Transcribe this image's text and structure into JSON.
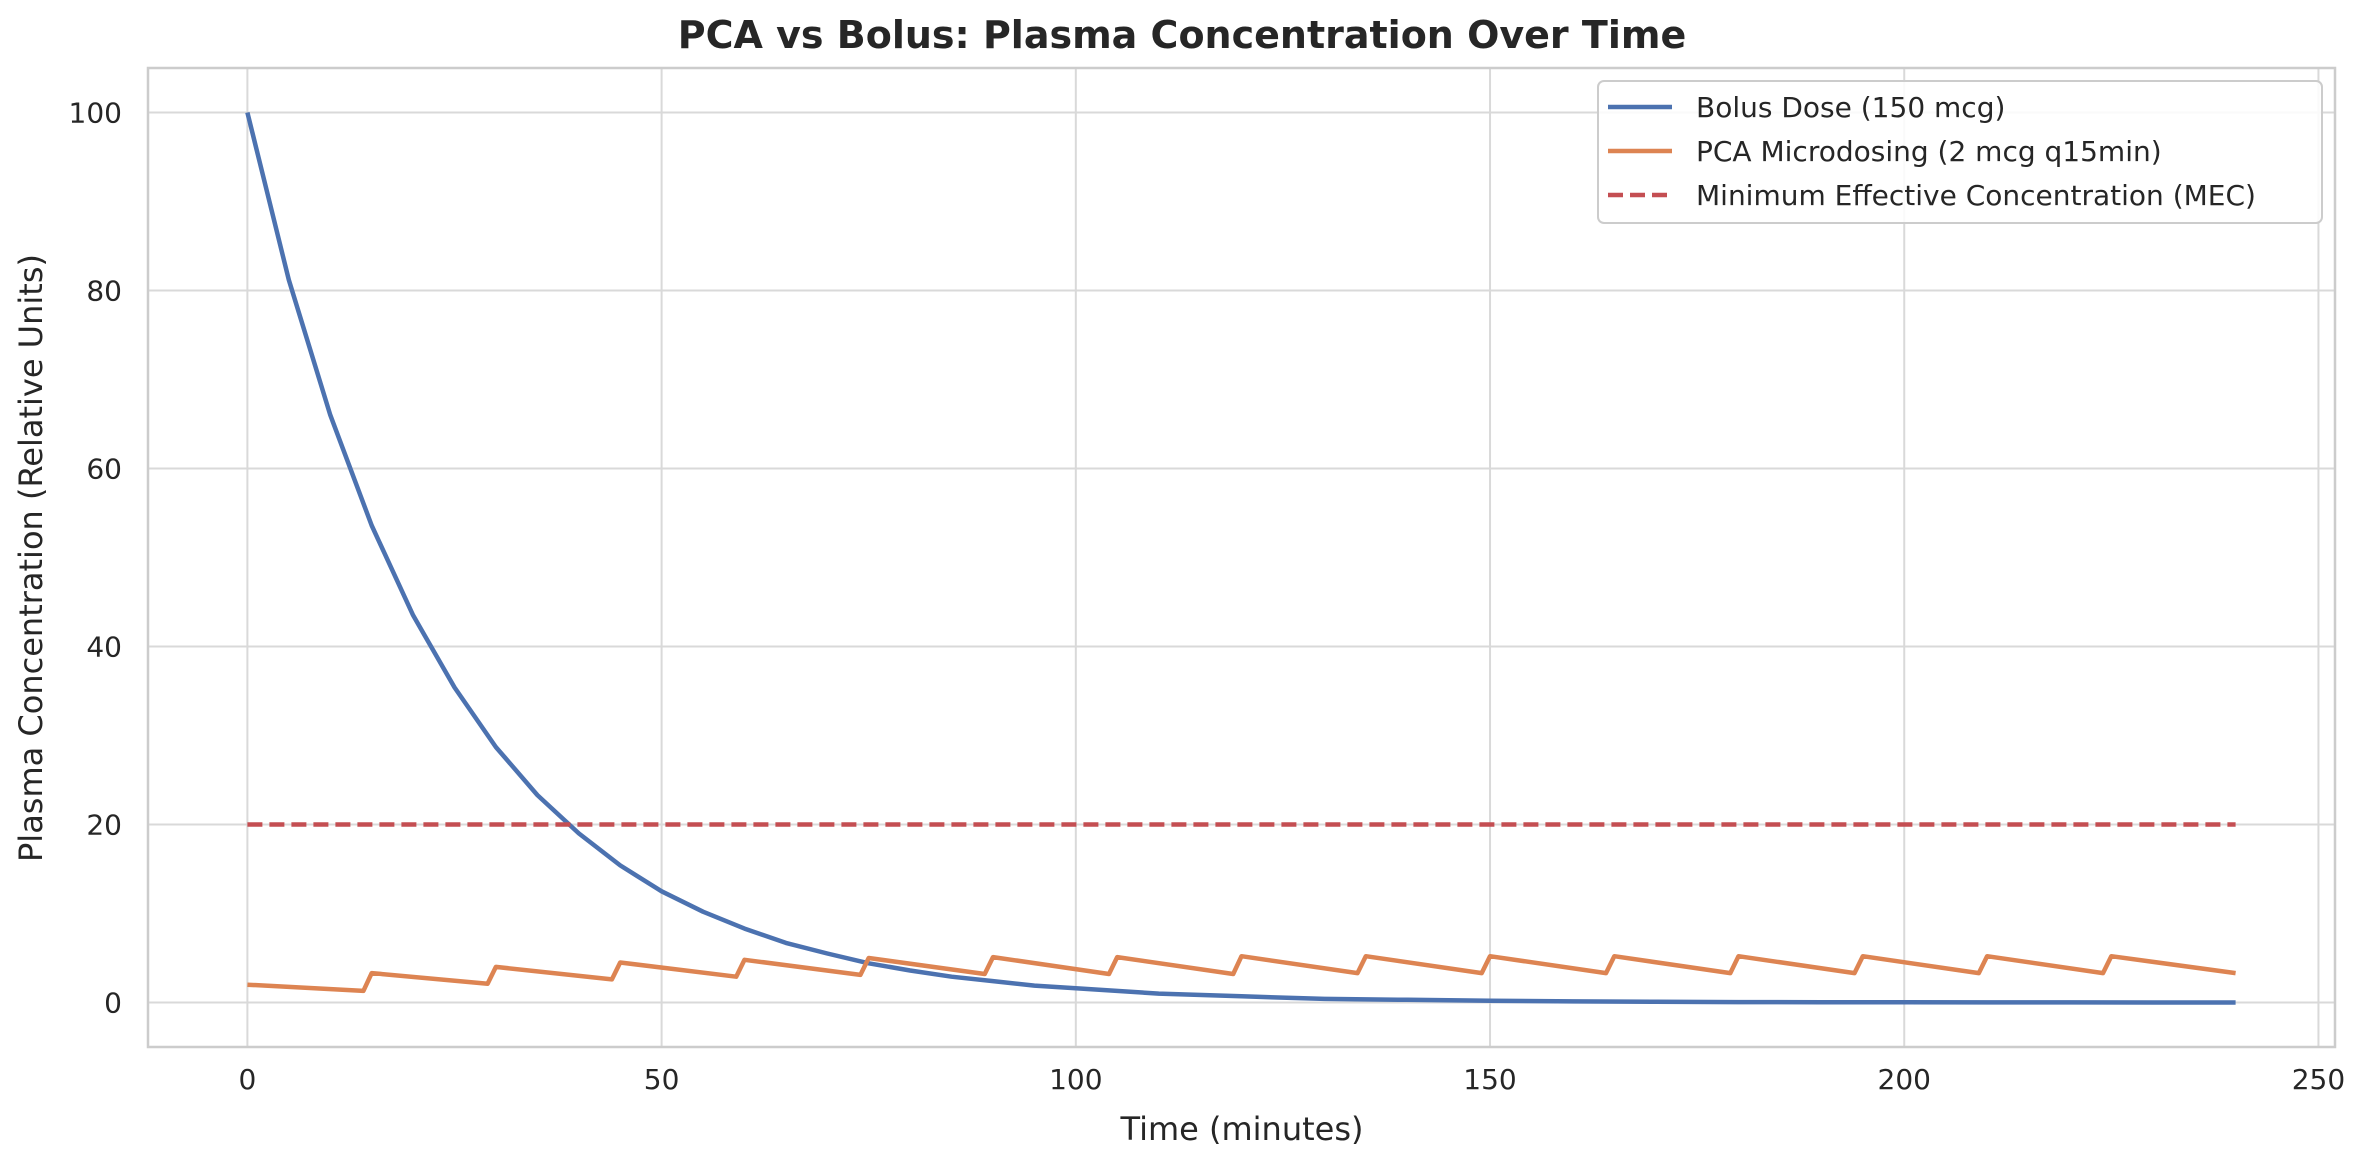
{
  "chart_data": {
    "type": "line",
    "title": "PCA vs Bolus: Plasma Concentration Over Time",
    "xlabel": "Time (minutes)",
    "ylabel": "Plasma Concentration (Relative Units)",
    "xlim": [
      -12,
      252
    ],
    "ylim": [
      -5,
      105
    ],
    "xticks": [
      0,
      50,
      100,
      150,
      200,
      250
    ],
    "yticks": [
      0,
      20,
      40,
      60,
      80,
      100
    ],
    "grid": true,
    "legend_position": "top-right",
    "series": [
      {
        "name": "Bolus Dose (150 mcg)",
        "color": "#4c72b0",
        "style": "solid",
        "x": [
          0,
          5,
          10,
          15,
          20,
          25,
          30,
          35,
          40,
          45,
          50,
          55,
          60,
          65,
          70,
          75,
          80,
          85,
          90,
          95,
          100,
          110,
          120,
          130,
          140,
          150,
          160,
          170,
          180,
          190,
          200,
          210,
          220,
          230,
          240
        ],
        "y": [
          100,
          81.2,
          66.0,
          53.6,
          43.5,
          35.4,
          28.7,
          23.3,
          19.0,
          15.4,
          12.5,
          10.2,
          8.3,
          6.7,
          5.5,
          4.4,
          3.6,
          2.9,
          2.4,
          1.9,
          1.6,
          1.0,
          0.7,
          0.4,
          0.3,
          0.2,
          0.12,
          0.08,
          0.05,
          0.03,
          0.02,
          0.01,
          0.01,
          0.0,
          0.0
        ]
      },
      {
        "name": "PCA Microdosing (2 mcg q15min)",
        "color": "#dd8452",
        "style": "solid",
        "x": [
          0,
          14,
          15,
          29,
          30,
          44,
          45,
          59,
          60,
          74,
          75,
          89,
          90,
          104,
          105,
          119,
          120,
          134,
          135,
          149,
          150,
          164,
          165,
          179,
          180,
          194,
          195,
          209,
          210,
          224,
          225,
          240
        ],
        "y": [
          2.0,
          1.3,
          3.3,
          2.1,
          4.0,
          2.6,
          4.5,
          2.9,
          4.8,
          3.1,
          5.0,
          3.2,
          5.1,
          3.2,
          5.1,
          3.2,
          5.2,
          3.3,
          5.2,
          3.3,
          5.2,
          3.3,
          5.2,
          3.3,
          5.2,
          3.3,
          5.2,
          3.3,
          5.2,
          3.3,
          5.2,
          3.3
        ]
      },
      {
        "name": "Minimum Effective Concentration (MEC)",
        "color": "#c44e52",
        "style": "dashed",
        "x": [
          0,
          240
        ],
        "y": [
          20,
          20
        ]
      }
    ]
  }
}
